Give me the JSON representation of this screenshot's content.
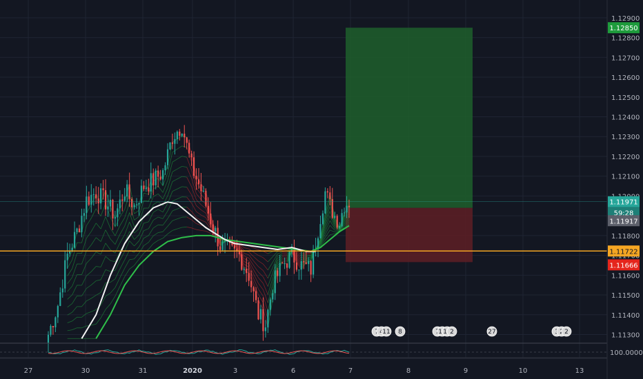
{
  "chart_data": {
    "type": "candlestick",
    "instrument_hint": "EUR/USD hourly (no symbol printed)",
    "price_axis": {
      "ticks": [
        "1.12900",
        "1.12800",
        "1.12700",
        "1.12600",
        "1.12500",
        "1.12400",
        "1.12300",
        "1.12200",
        "1.12100",
        "1.12000",
        "1.11900",
        "1.11800",
        "1.11700",
        "1.11600",
        "1.11500",
        "1.11400",
        "1.11300"
      ],
      "min": 1.1128,
      "max": 1.1293
    },
    "time_axis": {
      "labels": [
        "27",
        "30",
        "31",
        "2020",
        "3",
        "6",
        "7",
        "8",
        "9",
        "10",
        "13"
      ]
    },
    "price_labels": {
      "target": "1.12850",
      "last": "1.11971",
      "countdown": "59:28",
      "ma": "1.11917",
      "horizontal_line": "1.11722",
      "stop": "1.11666"
    },
    "position": {
      "entry": 1.1194,
      "target": 1.1285,
      "stop": 1.11666
    },
    "horizontal_line_price": 1.11722,
    "oscillator_axis_label": "100.00000",
    "event_markers": [
      {
        "day": "7",
        "labels": [
          "7",
          "4",
          "11"
        ]
      },
      {
        "day": "7",
        "labels": [
          "8"
        ]
      },
      {
        "day": "8",
        "labels": [
          "7",
          "10",
          "12",
          "2"
        ]
      },
      {
        "day": "9",
        "labels": [
          "27"
        ]
      },
      {
        "day": "10",
        "labels": [
          "3",
          "2",
          "2"
        ]
      }
    ],
    "anchors": [
      [
        0,
        1.113
      ],
      [
        4,
        1.1145
      ],
      [
        8,
        1.117
      ],
      [
        12,
        1.1182
      ],
      [
        16,
        1.1198
      ],
      [
        20,
        1.1202
      ],
      [
        24,
        1.1197
      ],
      [
        28,
        1.119
      ],
      [
        32,
        1.1203
      ],
      [
        36,
        1.1195
      ],
      [
        40,
        1.1205
      ],
      [
        44,
        1.1208
      ],
      [
        48,
        1.1212
      ],
      [
        52,
        1.123
      ],
      [
        56,
        1.1236
      ],
      [
        58,
        1.1225
      ],
      [
        60,
        1.1215
      ],
      [
        64,
        1.1203
      ],
      [
        68,
        1.1188
      ],
      [
        72,
        1.1175
      ],
      [
        76,
        1.1172
      ],
      [
        80,
        1.117
      ],
      [
        84,
        1.116
      ],
      [
        88,
        1.114
      ],
      [
        91,
        1.1135
      ],
      [
        94,
        1.1155
      ],
      [
        98,
        1.1165
      ],
      [
        102,
        1.117
      ],
      [
        106,
        1.1165
      ],
      [
        110,
        1.1163
      ],
      [
        114,
        1.119
      ],
      [
        116,
        1.1202
      ],
      [
        118,
        1.1195
      ],
      [
        120,
        1.119
      ],
      [
        122,
        1.1187
      ],
      [
        124,
        1.1196
      ],
      [
        126,
        1.1197
      ]
    ],
    "ema_white": [
      [
        14,
        1.1128
      ],
      [
        20,
        1.114
      ],
      [
        26,
        1.116
      ],
      [
        32,
        1.1176
      ],
      [
        38,
        1.1187
      ],
      [
        44,
        1.1194
      ],
      [
        50,
        1.1197
      ],
      [
        54,
        1.1196
      ],
      [
        58,
        1.1192
      ],
      [
        62,
        1.1188
      ],
      [
        66,
        1.1184
      ],
      [
        70,
        1.1181
      ],
      [
        74,
        1.1178
      ],
      [
        78,
        1.1176
      ],
      [
        84,
        1.1175
      ],
      [
        90,
        1.1174
      ],
      [
        96,
        1.1173
      ],
      [
        102,
        1.1174
      ],
      [
        108,
        1.1172
      ],
      [
        112,
        1.1172
      ]
    ],
    "ema_green": [
      [
        20,
        1.1128
      ],
      [
        26,
        1.114
      ],
      [
        32,
        1.1155
      ],
      [
        38,
        1.1165
      ],
      [
        44,
        1.1172
      ],
      [
        50,
        1.1177
      ],
      [
        56,
        1.1179
      ],
      [
        62,
        1.118
      ],
      [
        68,
        1.118
      ],
      [
        74,
        1.1178
      ],
      [
        80,
        1.1177
      ],
      [
        86,
        1.1176
      ],
      [
        92,
        1.1175
      ],
      [
        98,
        1.1174
      ],
      [
        104,
        1.1173
      ],
      [
        110,
        1.1172
      ],
      [
        114,
        1.1174
      ],
      [
        118,
        1.1178
      ],
      [
        122,
        1.1182
      ],
      [
        126,
        1.1185
      ]
    ],
    "colors": {
      "background": "#131722",
      "up": "#26a69a",
      "down": "#ef5350",
      "grid": "#1f2433",
      "axis_text": "#b2b5be",
      "target_zone": "#1f5f2c",
      "stop_zone": "#5e1f24",
      "horizontal_line": "#f5a623",
      "target_label": "#1e9b3c",
      "last_label": "#26a69a",
      "ma_label": "#5d606b",
      "stop_label": "#e5251c",
      "line_label": "#f5a623"
    }
  }
}
